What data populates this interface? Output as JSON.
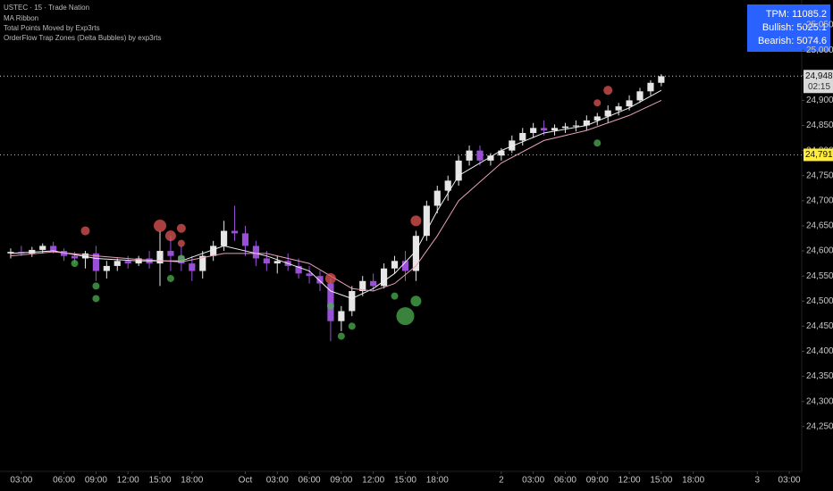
{
  "header": {
    "symbol": "USTEC · 15 · Trade Nation",
    "indicators": [
      "MA Ribbon",
      "Total Points Moved by Exp3rts",
      "OrderFlow Trap Zones (Delta Bubbles) by exp3rts"
    ]
  },
  "info_box": [
    "TPM: 11085.2",
    "Bullish: 5025.1",
    "Bearish: 5074.6"
  ],
  "chart_data": {
    "type": "candlestick",
    "up_color": "#e6e6e6",
    "down_color": "#9a4fd8",
    "x": [
      1,
      2,
      3,
      4,
      5,
      6,
      7,
      8,
      9,
      10,
      11,
      12,
      13,
      14,
      15,
      16,
      17,
      18,
      19,
      20,
      21,
      22,
      23,
      24,
      25,
      26,
      27,
      28,
      29,
      30,
      31,
      32,
      33,
      34,
      35,
      36,
      37,
      38,
      39,
      40,
      41,
      42,
      43,
      44,
      45,
      46,
      47,
      48,
      49,
      50,
      51,
      52,
      53,
      54,
      55,
      56,
      57,
      58,
      59,
      60,
      61,
      62
    ],
    "ohlc": [
      [
        24595,
        24605,
        24585,
        24598
      ],
      [
        24598,
        24610,
        24590,
        24595
      ],
      [
        24595,
        24608,
        24588,
        24602
      ],
      [
        24602,
        24615,
        24595,
        24610
      ],
      [
        24610,
        24618,
        24595,
        24600
      ],
      [
        24600,
        24605,
        24580,
        24590
      ],
      [
        24590,
        24598,
        24575,
        24585
      ],
      [
        24585,
        24600,
        24565,
        24595
      ],
      [
        24595,
        24610,
        24540,
        24560
      ],
      [
        24560,
        24580,
        24545,
        24570
      ],
      [
        24570,
        24585,
        24560,
        24580
      ],
      [
        24580,
        24590,
        24565,
        24575
      ],
      [
        24575,
        24590,
        24570,
        24585
      ],
      [
        24585,
        24600,
        24565,
        24575
      ],
      [
        24575,
        24640,
        24530,
        24600
      ],
      [
        24600,
        24630,
        24560,
        24590
      ],
      [
        24590,
        24610,
        24560,
        24575
      ],
      [
        24575,
        24590,
        24540,
        24560
      ],
      [
        24560,
        24600,
        24545,
        24590
      ],
      [
        24590,
        24620,
        24580,
        24610
      ],
      [
        24610,
        24660,
        24600,
        24640
      ],
      [
        24640,
        24690,
        24620,
        24635
      ],
      [
        24635,
        24650,
        24590,
        24610
      ],
      [
        24610,
        24620,
        24570,
        24585
      ],
      [
        24585,
        24600,
        24560,
        24575
      ],
      [
        24575,
        24590,
        24555,
        24580
      ],
      [
        24580,
        24595,
        24560,
        24570
      ],
      [
        24570,
        24585,
        24545,
        24555
      ],
      [
        24555,
        24570,
        24535,
        24550
      ],
      [
        24550,
        24560,
        24520,
        24535
      ],
      [
        24535,
        24545,
        24420,
        24460
      ],
      [
        24460,
        24490,
        24440,
        24480
      ],
      [
        24480,
        24530,
        24470,
        24520
      ],
      [
        24520,
        24550,
        24510,
        24540
      ],
      [
        24540,
        24555,
        24520,
        24530
      ],
      [
        24530,
        24575,
        24525,
        24565
      ],
      [
        24565,
        24590,
        24555,
        24580
      ],
      [
        24580,
        24600,
        24540,
        24560
      ],
      [
        24560,
        24640,
        24540,
        24630
      ],
      [
        24630,
        24700,
        24620,
        24690
      ],
      [
        24690,
        24730,
        24675,
        24720
      ],
      [
        24720,
        24750,
        24700,
        24740
      ],
      [
        24740,
        24790,
        24730,
        24780
      ],
      [
        24780,
        24810,
        24770,
        24800
      ],
      [
        24800,
        24810,
        24770,
        24780
      ],
      [
        24780,
        24795,
        24770,
        24790
      ],
      [
        24790,
        24805,
        24780,
        24800
      ],
      [
        24800,
        24830,
        24795,
        24820
      ],
      [
        24820,
        24845,
        24810,
        24835
      ],
      [
        24835,
        24855,
        24825,
        24845
      ],
      [
        24845,
        24860,
        24830,
        24840
      ],
      [
        24840,
        24852,
        24830,
        24845
      ],
      [
        24845,
        24855,
        24835,
        24848
      ],
      [
        24848,
        24860,
        24838,
        24850
      ],
      [
        24850,
        24870,
        24840,
        24860
      ],
      [
        24860,
        24875,
        24850,
        24868
      ],
      [
        24868,
        24890,
        24855,
        24880
      ],
      [
        24880,
        24895,
        24870,
        24888
      ],
      [
        24888,
        24910,
        24880,
        24900
      ],
      [
        24900,
        24925,
        24895,
        24918
      ],
      [
        24918,
        24940,
        24910,
        24935
      ],
      [
        24935,
        24952,
        24928,
        24948
      ]
    ],
    "lines": [
      {
        "color": "#f0f0f0",
        "x": [
          1,
          5,
          9,
          13,
          17,
          21,
          25,
          29,
          31,
          33,
          35,
          37,
          39,
          41,
          43,
          47,
          51,
          55,
          59,
          62
        ],
        "values": [
          24595,
          24600,
          24585,
          24580,
          24580,
          24610,
          24590,
          24560,
          24520,
          24505,
          24525,
          24555,
          24600,
          24680,
          24750,
          24800,
          24835,
          24850,
          24885,
          24920
        ]
      },
      {
        "color": "#e8a0b8",
        "x": [
          1,
          5,
          9,
          13,
          17,
          21,
          25,
          29,
          31,
          33,
          35,
          37,
          39,
          41,
          43,
          47,
          51,
          55,
          59,
          62
        ],
        "values": [
          24590,
          24598,
          24590,
          24583,
          24578,
          24595,
          24595,
          24575,
          24550,
          24525,
          24520,
          24535,
          24570,
          24630,
          24700,
          24775,
          24820,
          24840,
          24870,
          24900
        ]
      }
    ],
    "bubbles": [
      {
        "color": "#e05555",
        "x": [
          8,
          15,
          16,
          17,
          17,
          31,
          39,
          56,
          57
        ],
        "y": [
          24640,
          24650,
          24630,
          24645,
          24615,
          24545,
          24660,
          24895,
          24920
        ],
        "size": [
          5,
          7,
          6,
          5,
          4,
          6,
          6,
          4,
          5
        ]
      },
      {
        "color": "#4caf50",
        "x": [
          7,
          9,
          9,
          17,
          16,
          31,
          32,
          33,
          37,
          39,
          38,
          56
        ],
        "y": [
          24575,
          24530,
          24505,
          24585,
          24545,
          24490,
          24430,
          24450,
          24510,
          24500,
          24470,
          24815
        ],
        "size": [
          4,
          4,
          4,
          4,
          4,
          4,
          4,
          4,
          4,
          6,
          10,
          4
        ]
      }
    ],
    "price_lines": [
      {
        "value": 24948.3,
        "label": "24,948.3",
        "countdown": "02:15",
        "color": "#d0d0d0",
        "box": "#d9d9d9"
      },
      {
        "value": 24791.4,
        "label": "24,791.4",
        "color": "#d4c64a",
        "box": "#ffeb3b"
      }
    ],
    "ylim": [
      24166,
      25100
    ],
    "yticks": [
      {
        "value": 24250,
        "label": "24,250.0"
      },
      {
        "value": 24300,
        "label": "24,300.0"
      },
      {
        "value": 24350,
        "label": "24,350.0"
      },
      {
        "value": 24400,
        "label": "24,400.0"
      },
      {
        "value": 24450,
        "label": "24,450.0"
      },
      {
        "value": 24500,
        "label": "24,500.0"
      },
      {
        "value": 24550,
        "label": "24,550.0"
      },
      {
        "value": 24600,
        "label": "24,600.0"
      },
      {
        "value": 24650,
        "label": "24,650.0"
      },
      {
        "value": 24700,
        "label": "24,700.0"
      },
      {
        "value": 24750,
        "label": "24,750.0"
      },
      {
        "value": 24800,
        "label": "24,800.0"
      },
      {
        "value": 24850,
        "label": "24,850.0"
      },
      {
        "value": 24900,
        "label": "24,900.0"
      },
      {
        "value": 24950,
        "label": "24,950.0"
      },
      {
        "value": 25000,
        "label": "25,000.0"
      },
      {
        "value": 25050,
        "label": "25,050.0"
      }
    ],
    "xlim": [
      0,
      75
    ],
    "xticks": [
      {
        "value": 2,
        "label": "03:00"
      },
      {
        "value": 6,
        "label": "06:00"
      },
      {
        "value": 9,
        "label": "09:00"
      },
      {
        "value": 12,
        "label": "12:00"
      },
      {
        "value": 15,
        "label": "15:00"
      },
      {
        "value": 18,
        "label": "18:00"
      },
      {
        "value": 23,
        "label": "Oct"
      },
      {
        "value": 26,
        "label": "03:00"
      },
      {
        "value": 29,
        "label": "06:00"
      },
      {
        "value": 32,
        "label": "09:00"
      },
      {
        "value": 35,
        "label": "12:00"
      },
      {
        "value": 38,
        "label": "15:00"
      },
      {
        "value": 41,
        "label": "18:00"
      },
      {
        "value": 47,
        "label": "2"
      },
      {
        "value": 50,
        "label": "03:00"
      },
      {
        "value": 53,
        "label": "06:00"
      },
      {
        "value": 56,
        "label": "09:00"
      },
      {
        "value": 59,
        "label": "12:00"
      },
      {
        "value": 62,
        "label": "15:00"
      },
      {
        "value": 65,
        "label": "18:00"
      },
      {
        "value": 71,
        "label": "3"
      },
      {
        "value": 74,
        "label": "03:00"
      }
    ],
    "grid": false
  }
}
